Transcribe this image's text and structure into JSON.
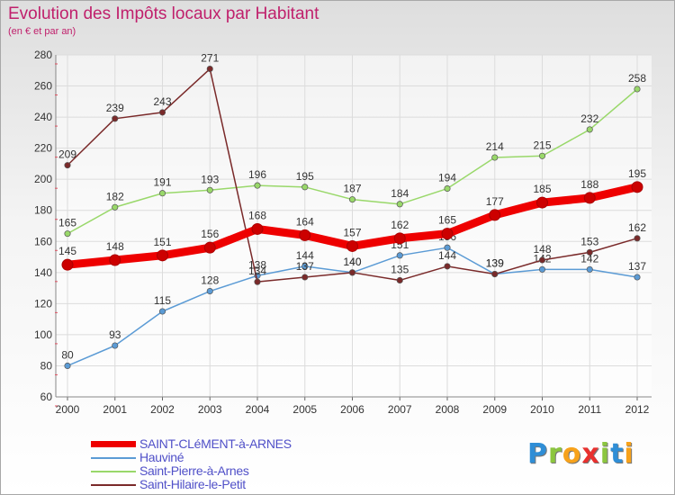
{
  "header": {
    "title": "Evolution des Impôts locaux par Habitant",
    "subtitle": "(en € et par an)"
  },
  "chart_data": {
    "type": "line",
    "title": "Evolution des Impôts locaux par Habitant",
    "subtitle": "(en € et par an)",
    "xlabel": "",
    "ylabel": "",
    "x": [
      "2000",
      "2001",
      "2002",
      "2003",
      "2004",
      "2005",
      "2006",
      "2007",
      "2008",
      "2009",
      "2010",
      "2011",
      "2012"
    ],
    "ylim": [
      60,
      280
    ],
    "yticks": [
      "60",
      "80",
      "100",
      "120",
      "140",
      "160",
      "180",
      "200",
      "220",
      "240",
      "260",
      "280"
    ],
    "grid": true,
    "legend_position": "bottom-left",
    "series": [
      {
        "name": "Hauviné",
        "color": "#5b9bd5",
        "values": [
          80,
          93,
          115,
          128,
          138,
          144,
          140,
          151,
          156,
          139,
          142,
          142,
          137
        ],
        "labels": [
          "80",
          "93",
          "115",
          "128",
          "138",
          "144",
          "140",
          "151",
          "156",
          "139",
          "142",
          "142",
          "137"
        ]
      },
      {
        "name": "Saint-Pierre-à-Arnes",
        "color": "#99d86a",
        "values": [
          165,
          182,
          191,
          193,
          196,
          195,
          187,
          184,
          194,
          214,
          215,
          232,
          258
        ],
        "labels": [
          "165",
          "182",
          "191",
          "193",
          "196",
          "195",
          "187",
          "184",
          "194",
          "214",
          "215",
          "232",
          "258"
        ]
      },
      {
        "name": "Saint-Hilaire-le-Petit",
        "color": "#7a2a2a",
        "values": [
          209,
          239,
          243,
          271,
          134,
          137,
          140,
          135,
          144,
          139,
          148,
          153,
          162
        ],
        "labels": [
          "209",
          "239",
          "243",
          "271",
          "134",
          "137",
          "140",
          "135",
          "144",
          "139",
          "148",
          "153",
          "162"
        ]
      },
      {
        "name": "SAINT-CLéMENT-à-ARNES",
        "color": "#ee0000",
        "values": [
          145,
          148,
          151,
          156,
          168,
          164,
          157,
          162,
          165,
          177,
          185,
          188,
          195
        ],
        "labels": [
          "145",
          "148",
          "151",
          "156",
          "168",
          "164",
          "157",
          "162",
          "165",
          "177",
          "185",
          "188",
          "195"
        ]
      }
    ]
  },
  "legend": {
    "items": [
      {
        "label": "SAINT-CLéMENT-à-ARNES",
        "color": "#ee0000"
      },
      {
        "label": "Hauviné",
        "color": "#5b9bd5"
      },
      {
        "label": "Saint-Pierre-à-Arnes",
        "color": "#99d86a"
      },
      {
        "label": "Saint-Hilaire-le-Petit",
        "color": "#7a2a2a"
      }
    ]
  },
  "logo": {
    "letters": [
      {
        "ch": "P",
        "color": "#2f8ed6"
      },
      {
        "ch": "r",
        "color": "#8cc63f"
      },
      {
        "ch": "o",
        "color": "#f7a21b"
      },
      {
        "ch": "x",
        "color": "#e8312f"
      },
      {
        "ch": "i",
        "color": "#8cc63f"
      },
      {
        "ch": "t",
        "color": "#2f8ed6"
      },
      {
        "ch": "i",
        "color": "#f7a21b"
      }
    ]
  }
}
